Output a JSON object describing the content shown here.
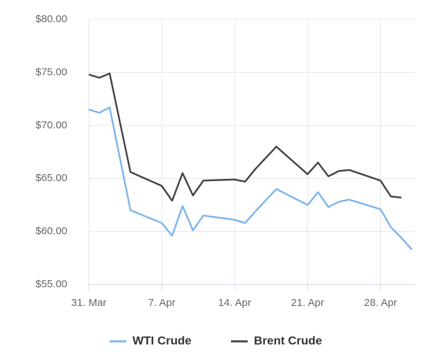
{
  "chart_data": {
    "type": "line",
    "x": [
      0,
      1,
      2,
      4,
      7,
      8,
      9,
      10,
      11,
      14,
      15,
      16,
      18,
      21,
      22,
      23,
      24,
      25,
      28,
      29,
      30,
      31
    ],
    "series": [
      {
        "name": "WTI Crude",
        "color": "#7cb5ec",
        "values": [
          71.5,
          71.2,
          71.7,
          62.0,
          60.8,
          59.6,
          62.4,
          60.1,
          61.5,
          61.1,
          60.8,
          61.9,
          64.0,
          62.5,
          63.7,
          62.3,
          62.8,
          63.0,
          62.1,
          60.4,
          59.4,
          58.3
        ]
      },
      {
        "name": "Brent Crude",
        "color": "#434348",
        "values": [
          74.8,
          74.5,
          74.9,
          65.6,
          64.3,
          62.9,
          65.5,
          63.4,
          64.8,
          64.9,
          64.7,
          65.9,
          68.0,
          65.4,
          66.5,
          65.2,
          65.7,
          65.8,
          64.8,
          63.3,
          63.2,
          null
        ]
      }
    ],
    "xlim": [
      0,
      31.3
    ],
    "xticks": [
      {
        "value": 0,
        "label": "31. Mar"
      },
      {
        "value": 7,
        "label": "7. Apr"
      },
      {
        "value": 14,
        "label": "14. Apr"
      },
      {
        "value": 21,
        "label": "21. Apr"
      },
      {
        "value": 28,
        "label": "28. Apr"
      }
    ],
    "ylim": [
      55,
      80
    ],
    "yticks": [
      {
        "value": 55,
        "label": "$55.00"
      },
      {
        "value": 60,
        "label": "$60.00"
      },
      {
        "value": 65,
        "label": "$65.00"
      },
      {
        "value": 70,
        "label": "$70.00"
      },
      {
        "value": 75,
        "label": "$75.00"
      },
      {
        "value": 80,
        "label": "$80.00"
      }
    ],
    "grid": true,
    "legend": "bottom"
  }
}
